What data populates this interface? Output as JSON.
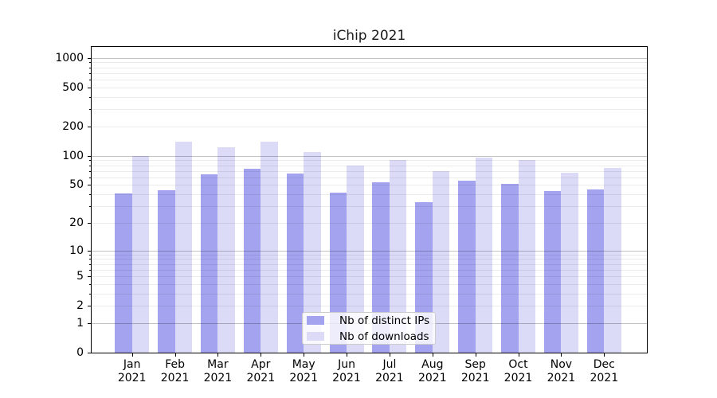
{
  "chart_data": {
    "type": "bar",
    "title": "iChip 2021",
    "x_months": [
      "Jan",
      "Feb",
      "Mar",
      "Apr",
      "May",
      "Jun",
      "Jul",
      "Aug",
      "Sep",
      "Oct",
      "Nov",
      "Dec"
    ],
    "x_year": "2021",
    "series": [
      {
        "name": "Nb of distinct IPs",
        "color": "#a3a3f0",
        "values": [
          41,
          44,
          65,
          73,
          66,
          42,
          53,
          33,
          55,
          51,
          43,
          45
        ]
      },
      {
        "name": "Nb of downloads",
        "color": "#dbdbf8",
        "values": [
          100,
          140,
          122,
          140,
          109,
          80,
          90,
          70,
          95,
          91,
          67,
          75
        ]
      }
    ],
    "yscale": "log1p",
    "ytick_labels": [
      0,
      1,
      2,
      5,
      10,
      20,
      50,
      100,
      200,
      500,
      1000
    ],
    "y_major_gridlines": [
      1,
      10,
      100,
      1000
    ],
    "ylim": [
      0,
      1295
    ],
    "grid": "horizontal major+minor, drawn over bars",
    "legend_position": "lower center"
  },
  "colors": {
    "background": "#ffffff",
    "spine": "#000000",
    "bar_distinct_ips": "#a3a3f0",
    "bar_downloads": "#dbdbf8",
    "grid_major": "#c2c2c2",
    "grid_minor": "#ebebeb"
  }
}
